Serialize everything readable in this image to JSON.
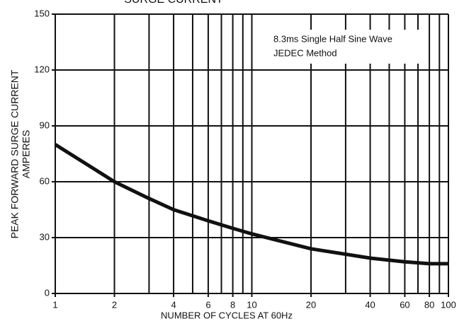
{
  "chart_data": {
    "type": "line",
    "title": "SURGE CURRENT",
    "x_label": "NUMBER OF CYCLES AT 60Hz",
    "y_label": [
      "PEAK FORWARD SURGE CURRENT",
      "AMPERES"
    ],
    "annotation": [
      "8.3ms Single Half Sine Wave",
      "JEDEC Method"
    ],
    "x": [
      1,
      2,
      3,
      4,
      6,
      8,
      10,
      20,
      40,
      60,
      80,
      100
    ],
    "series": [
      {
        "name": "Surge current",
        "color": "#111111",
        "values": [
          80,
          60,
          51,
          45,
          39,
          35,
          32,
          24,
          19,
          17,
          16,
          16
        ]
      }
    ],
    "xlim": [
      1,
      100
    ],
    "xscale": "log",
    "xticks": [
      1,
      2,
      4,
      6,
      8,
      10,
      20,
      40,
      60,
      80,
      100
    ],
    "xgrid_minor": [
      3,
      5,
      7,
      9,
      30,
      50,
      70,
      90
    ],
    "ylim": [
      0,
      150
    ],
    "yticks": [
      0,
      30,
      60,
      90,
      120,
      150
    ],
    "grid": true
  }
}
